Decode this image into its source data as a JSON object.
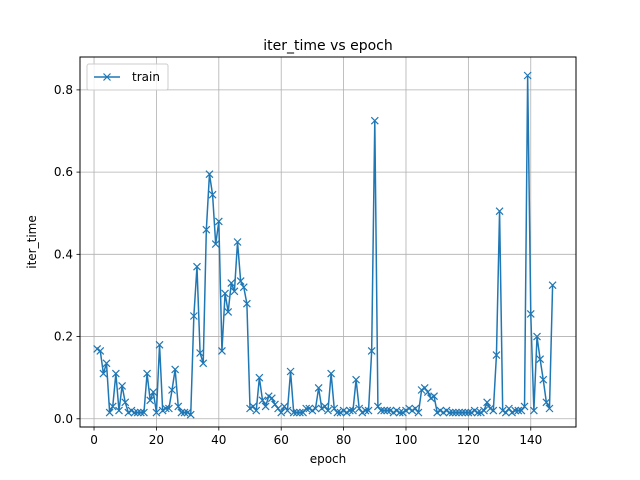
{
  "chart_data": {
    "type": "line",
    "title": "iter_time vs epoch",
    "xlabel": "epoch",
    "ylabel": "iter_time",
    "xlim": [
      -4.5,
      154.5
    ],
    "ylim": [
      -0.02,
      0.88
    ],
    "x_ticks": [
      0,
      20,
      40,
      60,
      80,
      100,
      120,
      140
    ],
    "y_ticks": [
      0.0,
      0.2,
      0.4,
      0.6,
      0.8
    ],
    "y_tick_labels": [
      "0.0",
      "0.2",
      "0.4",
      "0.6",
      "0.8"
    ],
    "grid": true,
    "legend_position": "top-left",
    "series": [
      {
        "name": "train",
        "color": "#1f77b4",
        "marker": "x",
        "x": [
          1,
          2,
          3,
          4,
          5,
          6,
          7,
          8,
          9,
          10,
          11,
          12,
          13,
          14,
          15,
          16,
          17,
          18,
          19,
          20,
          21,
          22,
          23,
          24,
          25,
          26,
          27,
          28,
          29,
          30,
          31,
          32,
          33,
          34,
          35,
          36,
          37,
          38,
          39,
          40,
          41,
          42,
          43,
          44,
          45,
          46,
          47,
          48,
          49,
          50,
          51,
          52,
          53,
          54,
          55,
          56,
          57,
          58,
          59,
          60,
          61,
          62,
          63,
          64,
          65,
          66,
          67,
          68,
          69,
          70,
          71,
          72,
          73,
          74,
          75,
          76,
          77,
          78,
          79,
          80,
          81,
          82,
          83,
          84,
          85,
          86,
          87,
          88,
          89,
          90,
          91,
          92,
          93,
          94,
          95,
          96,
          97,
          98,
          99,
          100,
          101,
          102,
          103,
          104,
          105,
          106,
          107,
          108,
          109,
          110,
          111,
          112,
          113,
          114,
          115,
          116,
          117,
          118,
          119,
          120,
          121,
          122,
          123,
          124,
          125,
          126,
          127,
          128,
          129,
          130,
          131,
          132,
          133,
          134,
          135,
          136,
          137,
          138,
          139,
          140,
          141,
          142,
          143,
          144,
          145,
          146,
          147
        ],
        "values": [
          0.17,
          0.165,
          0.11,
          0.135,
          0.015,
          0.03,
          0.11,
          0.02,
          0.08,
          0.04,
          0.015,
          0.02,
          0.015,
          0.015,
          0.015,
          0.015,
          0.11,
          0.045,
          0.065,
          0.015,
          0.18,
          0.02,
          0.025,
          0.025,
          0.07,
          0.12,
          0.03,
          0.015,
          0.015,
          0.015,
          0.01,
          0.25,
          0.37,
          0.16,
          0.135,
          0.46,
          0.595,
          0.545,
          0.425,
          0.48,
          0.165,
          0.305,
          0.26,
          0.33,
          0.31,
          0.43,
          0.335,
          0.32,
          0.28,
          0.025,
          0.03,
          0.02,
          0.1,
          0.045,
          0.03,
          0.055,
          0.05,
          0.035,
          0.025,
          0.015,
          0.03,
          0.02,
          0.115,
          0.015,
          0.015,
          0.015,
          0.015,
          0.025,
          0.025,
          0.02,
          0.025,
          0.075,
          0.025,
          0.03,
          0.02,
          0.11,
          0.025,
          0.015,
          0.015,
          0.02,
          0.015,
          0.02,
          0.02,
          0.095,
          0.025,
          0.015,
          0.02,
          0.02,
          0.165,
          0.725,
          0.03,
          0.02,
          0.02,
          0.02,
          0.02,
          0.015,
          0.02,
          0.015,
          0.015,
          0.02,
          0.025,
          0.02,
          0.025,
          0.015,
          0.07,
          0.075,
          0.065,
          0.05,
          0.055,
          0.015,
          0.02,
          0.015,
          0.02,
          0.015,
          0.015,
          0.015,
          0.015,
          0.015,
          0.015,
          0.015,
          0.015,
          0.02,
          0.015,
          0.015,
          0.02,
          0.04,
          0.025,
          0.02,
          0.155,
          0.505,
          0.02,
          0.015,
          0.025,
          0.015,
          0.02,
          0.02,
          0.02,
          0.03,
          0.835,
          0.255,
          0.02,
          0.2,
          0.145,
          0.095,
          0.04,
          0.025,
          0.325
        ]
      }
    ]
  }
}
